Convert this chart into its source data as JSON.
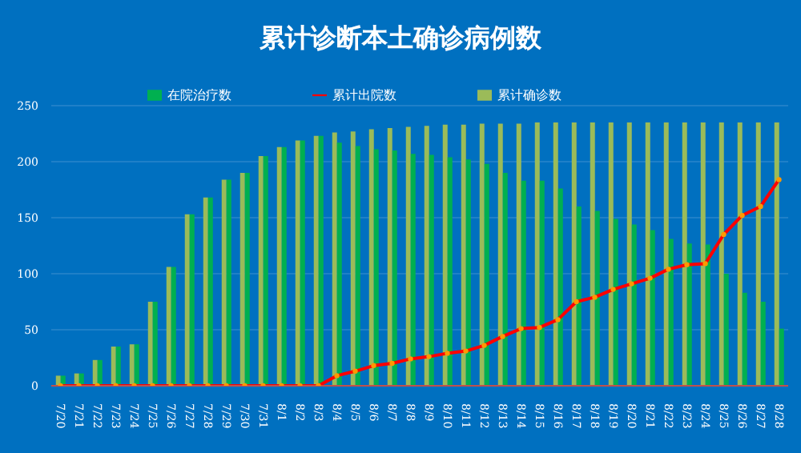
{
  "chart_data": {
    "type": "bar",
    "title": "累计诊断本土确诊病例数",
    "categories": [
      "7/20",
      "7/21",
      "7/22",
      "7/23",
      "7/24",
      "7/25",
      "7/26",
      "7/27",
      "7/28",
      "7/29",
      "7/30",
      "7/31",
      "8/1",
      "8/2",
      "8/3",
      "8/4",
      "8/5",
      "8/6",
      "8/7",
      "8/8",
      "8/9",
      "8/10",
      "8/11",
      "8/12",
      "8/13",
      "8/14",
      "8/15",
      "8/16",
      "8/17",
      "8/18",
      "8/19",
      "8/20",
      "8/21",
      "8/22",
      "8/23",
      "8/24",
      "8/25",
      "8/26",
      "8/27",
      "8/28"
    ],
    "series": [
      {
        "name": "累计确诊数",
        "color": "#9bbb59",
        "values": [
          9,
          11,
          23,
          35,
          37,
          75,
          106,
          153,
          168,
          184,
          190,
          205,
          213,
          219,
          223,
          226,
          227,
          229,
          230,
          231,
          232,
          233,
          233,
          234,
          234,
          234,
          235,
          235,
          235,
          235,
          235,
          235,
          235,
          235,
          235,
          235,
          235,
          235,
          235,
          235
        ]
      },
      {
        "name": "在院治疗数",
        "color": "#00b050",
        "values": [
          9,
          11,
          23,
          35,
          37,
          75,
          106,
          153,
          168,
          184,
          190,
          205,
          213,
          219,
          223,
          217,
          214,
          211,
          210,
          207,
          206,
          204,
          202,
          198,
          190,
          183,
          183,
          176,
          160,
          156,
          149,
          144,
          139,
          131,
          127,
          126,
          100,
          83,
          75,
          51
        ]
      },
      {
        "name": "累计出院数",
        "type": "line",
        "color": "#ff0000",
        "values": [
          0,
          0,
          0,
          0,
          0,
          0,
          0,
          0,
          0,
          0,
          0,
          0,
          0,
          0,
          0,
          9,
          13,
          18,
          20,
          24,
          26,
          29,
          31,
          36,
          44,
          51,
          52,
          59,
          75,
          79,
          86,
          91,
          96,
          104,
          108,
          109,
          135,
          152,
          160,
          184
        ]
      }
    ],
    "ylim": [
      0,
      250
    ],
    "yticks": [
      0,
      50,
      100,
      150,
      200,
      250
    ],
    "grid": "y",
    "legend": "top",
    "marker": "circle"
  }
}
